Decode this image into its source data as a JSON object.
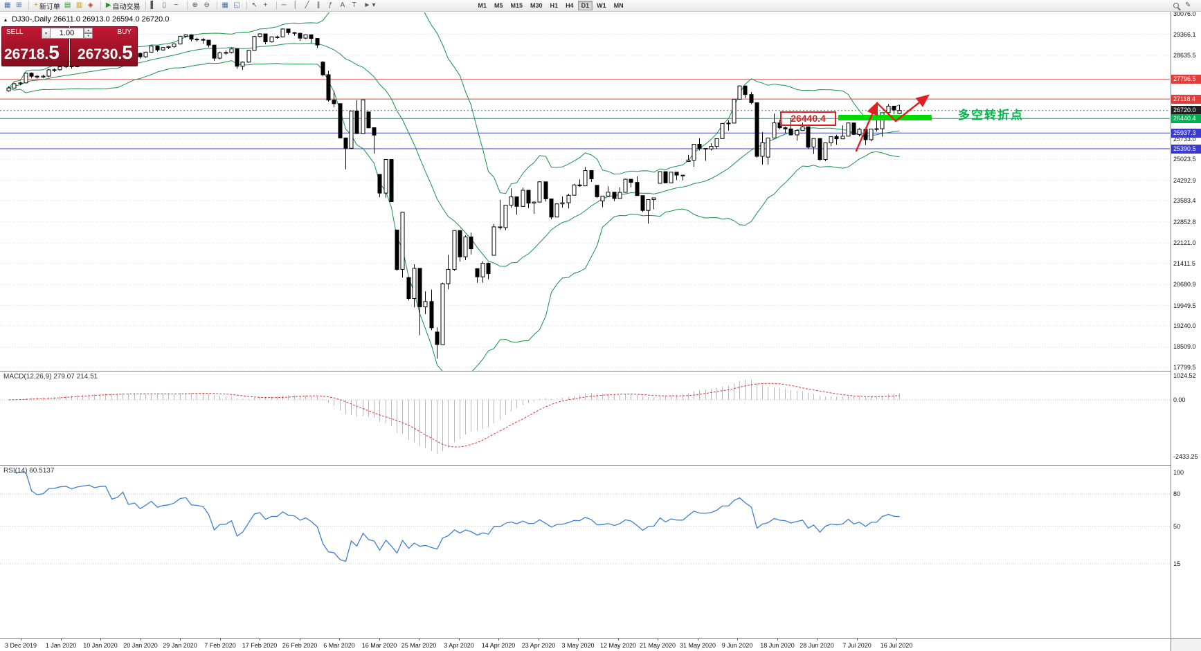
{
  "toolbar": {
    "new_order_label": "新订单",
    "autotrade_label": "自动交易",
    "timeframes": [
      "M1",
      "M5",
      "M15",
      "M30",
      "H1",
      "H4",
      "D1",
      "W1",
      "MN"
    ],
    "active_timeframe": "D1"
  },
  "icons": {
    "panel_toggle": "▴",
    "window": "▦",
    "chart_plus": "⊞",
    "new_order": "+",
    "market_watch": "▤",
    "data_window": "▥",
    "navigator": "◈",
    "autotrade_play": "▶",
    "bar_chart": "▌",
    "candle_chart": "▯",
    "line_chart": "~",
    "zoom_in": "⊕",
    "zoom_out": "⊖",
    "tile_windows": "▦",
    "cascade": "◱",
    "cursor": "↖",
    "crosshair": "+",
    "hline": "─",
    "vline": "│",
    "trendline": "╱",
    "channel": "∥",
    "fibonacci": "ƒ",
    "text": "A",
    "label": "T",
    "shapes": "►",
    "dropdown": "▾",
    "spin_up": "▴",
    "spin_down": "▾",
    "edit": "✎"
  },
  "chart": {
    "symbol_period": "DJ30-,Daily",
    "ohlc_text": "26611.0 26913.0 26594.0 26720.0"
  },
  "trade_panel": {
    "sell_label": "SELL",
    "buy_label": "BUY",
    "volume": "1.00",
    "sell_price_main": "26718.",
    "sell_price_pip": "5",
    "buy_price_main": "26730.",
    "buy_price_pip": "5"
  },
  "annotations": {
    "price_box": "26440.4",
    "turning_point": "多空转折点"
  },
  "indicators": {
    "macd": {
      "label": "MACD(12,26,9) 279.07 214.51",
      "scale": [
        {
          "text": "1024.52",
          "v": 1024.52
        },
        {
          "text": "0.00",
          "v": 0
        },
        {
          "text": "-2433.25",
          "v": -2433.25
        }
      ]
    },
    "rsi": {
      "label": "RSI(14) 60.5137",
      "levels": [
        {
          "text": "100",
          "v": 100
        },
        {
          "text": "80",
          "v": 80
        },
        {
          "text": "50",
          "v": 50
        },
        {
          "text": "15",
          "v": 15
        }
      ]
    }
  },
  "price_axis": {
    "ticks": [
      "30076.0",
      "29366.1",
      "28635.5",
      "25733.0",
      "25023.5",
      "24292.9",
      "23583.4",
      "22852.8",
      "22121.0",
      "21411.5",
      "20680.9",
      "19949.5",
      "19240.0",
      "18509.0",
      "17799.5"
    ]
  },
  "time_axis": {
    "labels": [
      "3 Dec 2019",
      "1 Jan 2020",
      "10 Jan 2020",
      "20 Jan 2020",
      "29 Jan 2020",
      "7 Feb 2020",
      "17 Feb 2020",
      "26 Feb 2020",
      "6 Mar 2020",
      "16 Mar 2020",
      "25 Mar 2020",
      "3 Apr 2020",
      "14 Apr 2020",
      "23 Apr 2020",
      "3 May 2020",
      "12 May 2020",
      "21 May 2020",
      "31 May 2020",
      "9 Jun 2020",
      "18 Jun 2020",
      "28 Jun 2020",
      "7 Jul 2020",
      "16 Jul 2020"
    ]
  },
  "colors": {
    "red_line": "#e43b3b",
    "blue_line": "#3a3ad0",
    "green_line": "#00b050",
    "bid_line": "#666666",
    "bid_label_bg": "#1f1f1f",
    "highlight": "#00dc00",
    "annotation_red": "#e02020",
    "annotation_green": "#00b84a",
    "band": "#169146",
    "macd_hist": "#b8b8b8",
    "macd_signal": "#dd3333",
    "rsi": "#3f7fd0",
    "grid": "#dedede",
    "candle_up": "#ffffff",
    "candle_down": "#000000",
    "candle_border": "#000000"
  },
  "chart_data": {
    "type": "candlestick",
    "symbol": "DJ30",
    "timeframe": "Daily",
    "y_max": 30076.0,
    "y_min": 17799.5,
    "bollinger": {
      "period": 20,
      "deviation": 2
    },
    "macd": {
      "fast": 12,
      "slow": 26,
      "signal": 9,
      "current_main": 279.07,
      "current_signal": 214.51
    },
    "rsi": {
      "period": 14,
      "current": 60.5137
    },
    "horizontal_lines": [
      {
        "text": "27796.5",
        "price": 27796.5,
        "key": "red"
      },
      {
        "text": "27118.4",
        "price": 27118.4,
        "key": "red"
      },
      {
        "text": "26720.0",
        "price": 26720.0,
        "key": "bid"
      },
      {
        "text": "26440.4",
        "price": 26440.4,
        "key": "green"
      },
      {
        "text": "25937.3",
        "price": 25937.3,
        "key": "blue"
      },
      {
        "text": "25390.5",
        "price": 25390.5,
        "key": "blue"
      }
    ],
    "ohlc": [
      [
        27400,
        27560,
        27370,
        27502
      ],
      [
        27502,
        27680,
        27480,
        27650
      ],
      [
        27650,
        27710,
        27600,
        27678
      ],
      [
        27678,
        28040,
        27660,
        28015
      ],
      [
        28015,
        28040,
        27850,
        27910
      ],
      [
        27910,
        27950,
        27820,
        27882
      ],
      [
        27882,
        27960,
        27850,
        27911
      ],
      [
        27911,
        28160,
        27880,
        28132
      ],
      [
        28132,
        28180,
        28060,
        28135
      ],
      [
        28135,
        28260,
        28100,
        28236
      ],
      [
        28236,
        28300,
        28190,
        28267
      ],
      [
        28267,
        28290,
        28170,
        28239
      ],
      [
        28239,
        28400,
        28220,
        28377
      ],
      [
        28377,
        28480,
        28340,
        28455
      ],
      [
        28455,
        28580,
        28430,
        28551
      ],
      [
        28551,
        28570,
        28480,
        28515
      ],
      [
        28515,
        28650,
        28500,
        28621
      ],
      [
        28621,
        28680,
        28590,
        28645
      ],
      [
        28645,
        28660,
        28420,
        28462
      ],
      [
        28462,
        28570,
        28430,
        28538
      ],
      [
        28538,
        28890,
        28520,
        28869
      ],
      [
        28869,
        28880,
        28565,
        28635
      ],
      [
        28635,
        28720,
        28560,
        28704
      ],
      [
        28704,
        28730,
        28520,
        28584
      ],
      [
        28584,
        28760,
        28550,
        28745
      ],
      [
        28745,
        28980,
        28730,
        28957
      ],
      [
        28957,
        28970,
        28760,
        28824
      ],
      [
        28824,
        28920,
        28790,
        28907
      ],
      [
        28907,
        28960,
        28850,
        28939
      ],
      [
        28939,
        29050,
        28900,
        29030
      ],
      [
        29030,
        29310,
        29010,
        29298
      ],
      [
        29298,
        29370,
        29250,
        29348
      ],
      [
        29348,
        29360,
        29120,
        29196
      ],
      [
        29196,
        29240,
        29110,
        29186
      ],
      [
        29186,
        29230,
        29040,
        29160
      ],
      [
        29160,
        29170,
        28910,
        28990
      ],
      [
        28990,
        29000,
        28440,
        28536
      ],
      [
        28536,
        28760,
        28500,
        28723
      ],
      [
        28723,
        28810,
        28650,
        28734
      ],
      [
        28734,
        28890,
        28700,
        28859
      ],
      [
        28859,
        28860,
        28170,
        28256
      ],
      [
        28256,
        28420,
        28130,
        28400
      ],
      [
        28400,
        28830,
        28380,
        28808
      ],
      [
        28808,
        29310,
        28800,
        29291
      ],
      [
        29291,
        29400,
        29250,
        29380
      ],
      [
        29380,
        29390,
        29020,
        29103
      ],
      [
        29103,
        29290,
        29080,
        29277
      ],
      [
        29277,
        29320,
        29210,
        29276
      ],
      [
        29276,
        29570,
        29260,
        29551
      ],
      [
        29551,
        29560,
        29350,
        29423
      ],
      [
        29423,
        29450,
        29320,
        29398
      ],
      [
        29398,
        29420,
        29140,
        29232
      ],
      [
        29232,
        29360,
        29200,
        29348
      ],
      [
        29348,
        29360,
        29060,
        29220
      ],
      [
        29220,
        29230,
        28890,
        28992
      ],
      [
        28400,
        28440,
        27910,
        27961
      ],
      [
        27961,
        28100,
        27030,
        27081
      ],
      [
        27081,
        27400,
        26830,
        26958
      ],
      [
        26958,
        26960,
        25750,
        25767
      ],
      [
        25767,
        25780,
        24680,
        25409
      ],
      [
        25409,
        26710,
        25390,
        26703
      ],
      [
        26703,
        27080,
        25910,
        25917
      ],
      [
        25917,
        27100,
        25900,
        27090
      ],
      [
        26670,
        26680,
        26100,
        26121
      ],
      [
        26121,
        26130,
        25220,
        25865
      ],
      [
        24500,
        24510,
        23710,
        23851
      ],
      [
        23851,
        25020,
        23690,
        25018
      ],
      [
        25018,
        25030,
        23550,
        23553
      ],
      [
        22570,
        22580,
        21150,
        21201
      ],
      [
        21201,
        23190,
        20920,
        23186
      ],
      [
        20920,
        20940,
        20120,
        20189
      ],
      [
        20189,
        21380,
        19880,
        21237
      ],
      [
        21237,
        21240,
        18920,
        19899
      ],
      [
        19899,
        20440,
        19650,
        20087
      ],
      [
        20087,
        20500,
        19090,
        19174
      ],
      [
        19028,
        19190,
        18100,
        18592
      ],
      [
        18592,
        20740,
        18590,
        20705
      ],
      [
        20705,
        21710,
        20510,
        21201
      ],
      [
        21201,
        22560,
        21150,
        22552
      ],
      [
        22552,
        22560,
        21470,
        21637
      ],
      [
        21637,
        22380,
        21520,
        22327
      ],
      [
        22327,
        22480,
        21720,
        21917
      ],
      [
        21227,
        21240,
        20735,
        20944
      ],
      [
        20944,
        21480,
        20740,
        21413
      ],
      [
        21413,
        21440,
        20860,
        21053
      ],
      [
        21693,
        22780,
        21690,
        22680
      ],
      [
        22680,
        23620,
        22580,
        22654
      ],
      [
        22654,
        23440,
        22560,
        23434
      ],
      [
        23434,
        24010,
        23340,
        23719
      ],
      [
        23719,
        23730,
        23100,
        23391
      ],
      [
        23391,
        24040,
        23380,
        23950
      ],
      [
        23950,
        23960,
        23330,
        23504
      ],
      [
        23504,
        23560,
        23130,
        23538
      ],
      [
        23538,
        24260,
        23530,
        24242
      ],
      [
        24242,
        24250,
        23560,
        23650
      ],
      [
        23650,
        23660,
        22940,
        23019
      ],
      [
        23019,
        23500,
        23010,
        23476
      ],
      [
        23476,
        23740,
        23340,
        23515
      ],
      [
        23515,
        23830,
        23320,
        23775
      ],
      [
        23775,
        24170,
        23770,
        24134
      ],
      [
        24134,
        24330,
        24070,
        24102
      ],
      [
        24102,
        24760,
        24100,
        24634
      ],
      [
        24634,
        24640,
        24240,
        24346
      ],
      [
        24120,
        24130,
        23680,
        23724
      ],
      [
        23581,
        23760,
        23360,
        23749
      ],
      [
        23749,
        24090,
        23740,
        23883
      ],
      [
        23883,
        23890,
        23570,
        23665
      ],
      [
        23665,
        24050,
        23660,
        23876
      ],
      [
        23876,
        24350,
        23870,
        24331
      ],
      [
        24331,
        24340,
        24050,
        24222
      ],
      [
        24222,
        24430,
        23760,
        23765
      ],
      [
        23765,
        23770,
        23190,
        23248
      ],
      [
        23248,
        23630,
        22790,
        23625
      ],
      [
        23625,
        23690,
        23290,
        23685
      ],
      [
        24190,
        24600,
        24180,
        24597
      ],
      [
        24597,
        24600,
        24190,
        24207
      ],
      [
        24207,
        24580,
        24200,
        24576
      ],
      [
        24576,
        24580,
        24300,
        24474
      ],
      [
        24474,
        24480,
        24290,
        24465
      ],
      [
        24950,
        25180,
        24940,
        24995
      ],
      [
        24995,
        25550,
        24760,
        25548
      ],
      [
        25548,
        25760,
        25330,
        25401
      ],
      [
        25401,
        25410,
        24970,
        25383
      ],
      [
        25383,
        25580,
        25330,
        25475
      ],
      [
        25475,
        25750,
        25400,
        25743
      ],
      [
        25743,
        26280,
        25740,
        26270
      ],
      [
        26270,
        26380,
        26020,
        26282
      ],
      [
        26282,
        27110,
        26280,
        27111
      ],
      [
        27111,
        27580,
        27100,
        27572
      ],
      [
        27572,
        27580,
        27150,
        27272
      ],
      [
        27272,
        27360,
        26940,
        26990
      ],
      [
        26990,
        27000,
        25080,
        25128
      ],
      [
        25128,
        25965,
        24840,
        25605
      ],
      [
        25100,
        25780,
        24840,
        25763
      ],
      [
        25763,
        26610,
        25760,
        26290
      ],
      [
        26290,
        26400,
        26070,
        26120
      ],
      [
        26120,
        26160,
        25940,
        26080
      ],
      [
        26080,
        26450,
        25850,
        25871
      ],
      [
        25871,
        26060,
        25670,
        26025
      ],
      [
        26025,
        26300,
        26020,
        26156
      ],
      [
        26156,
        26160,
        25380,
        25446
      ],
      [
        25446,
        25750,
        25210,
        25746
      ],
      [
        25746,
        25750,
        24970,
        25016
      ],
      [
        25016,
        25600,
        24960,
        25596
      ],
      [
        25596,
        25820,
        25480,
        25813
      ],
      [
        25813,
        25880,
        25530,
        25735
      ],
      [
        25735,
        26200,
        25730,
        25827
      ],
      [
        25827,
        26300,
        25820,
        26287
      ],
      [
        26287,
        26290,
        25870,
        25890
      ],
      [
        25890,
        26110,
        25820,
        26067
      ],
      [
        26067,
        26070,
        25520,
        25706
      ],
      [
        25706,
        26080,
        25650,
        26075
      ],
      [
        26075,
        26640,
        25990,
        26085
      ],
      [
        26085,
        26650,
        25820,
        26643
      ],
      [
        26643,
        26940,
        26640,
        26870
      ],
      [
        26870,
        26880,
        26590,
        26735
      ],
      [
        26611,
        26913,
        26594,
        26720
      ]
    ]
  }
}
